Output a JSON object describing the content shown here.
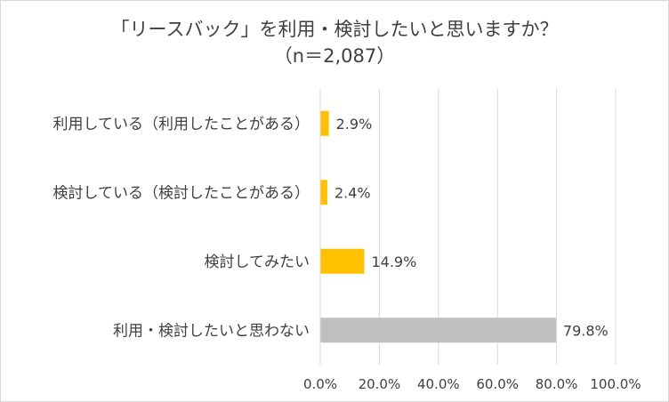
{
  "chart_data": {
    "type": "bar",
    "orientation": "horizontal",
    "title": "「リースバック」を利用・検討したいと思いますか？",
    "subtitle": "（n＝2,087）",
    "categories": [
      "利用している（利用したことがある）",
      "検討している（検討したことがある）",
      "検討してみたい",
      "利用・検討したいと思わない"
    ],
    "values": [
      2.9,
      2.4,
      14.9,
      79.8
    ],
    "value_labels": [
      "2.9%",
      "2.4%",
      "14.9%",
      "79.8%"
    ],
    "bar_colors": [
      "#FFC000",
      "#FFC000",
      "#FFC000",
      "#BFBFBF"
    ],
    "xlim": [
      0,
      100
    ],
    "x_ticks": [
      0,
      20,
      40,
      60,
      80,
      100
    ],
    "x_tick_labels": [
      "0.0%",
      "20.0%",
      "40.0%",
      "60.0%",
      "80.0%",
      "100.0%"
    ],
    "grid": true,
    "gridline_color": "#d9d9d9"
  }
}
